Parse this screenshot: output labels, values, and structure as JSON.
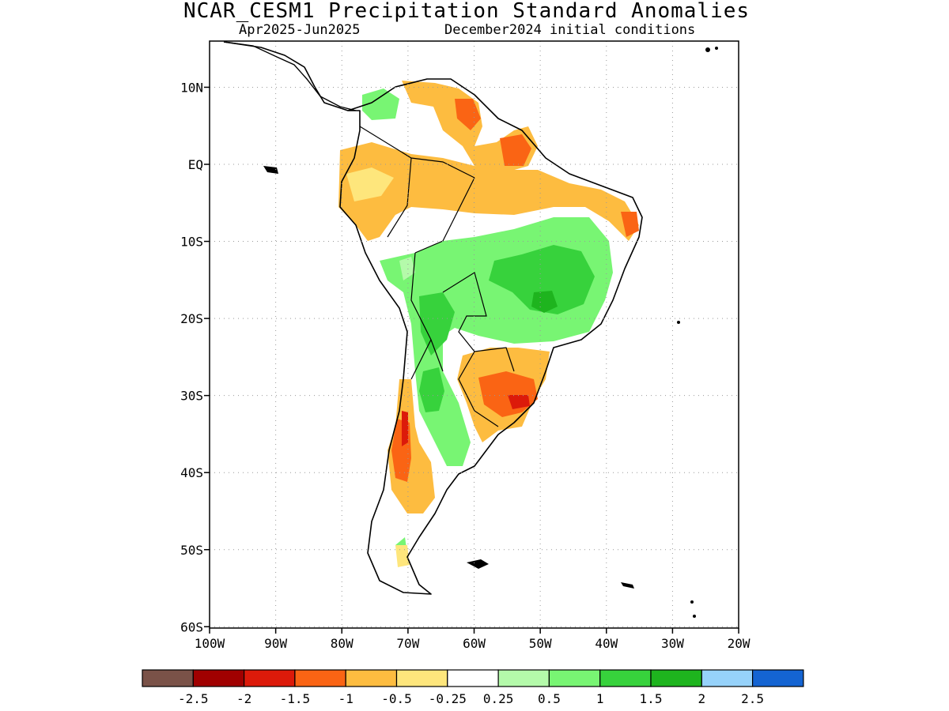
{
  "title": "NCAR_CESM1 Precipitation Standard Anomalies",
  "period": "Apr2025-Jun2025",
  "initial_conditions": "December2024 initial conditions",
  "map": {
    "lon_range": [
      -100,
      -20
    ],
    "lat_range": [
      -60,
      15
    ],
    "lon_ticks": [
      {
        "value": -100,
        "label": "100W"
      },
      {
        "value": -90,
        "label": "90W"
      },
      {
        "value": -80,
        "label": "80W"
      },
      {
        "value": -70,
        "label": "70W"
      },
      {
        "value": -60,
        "label": "60W"
      },
      {
        "value": -50,
        "label": "50W"
      },
      {
        "value": -40,
        "label": "40W"
      },
      {
        "value": -30,
        "label": "30W"
      },
      {
        "value": -20,
        "label": "20W"
      }
    ],
    "lat_ticks": [
      {
        "value": 10,
        "label": "10N"
      },
      {
        "value": 0,
        "label": "EQ"
      },
      {
        "value": -10,
        "label": "10S"
      },
      {
        "value": -20,
        "label": "20S"
      },
      {
        "value": -30,
        "label": "30S"
      },
      {
        "value": -40,
        "label": "40S"
      },
      {
        "value": -50,
        "label": "50S"
      },
      {
        "value": -60,
        "label": "60S"
      }
    ],
    "grid": "dotted"
  },
  "colorbar": {
    "colors": [
      "#7a5248",
      "#a00000",
      "#dc1a0a",
      "#fa6414",
      "#fdbc40",
      "#fee67c",
      "#ffffff",
      "#b4faaa",
      "#78f573",
      "#37d23c",
      "#1eb41e",
      "#96d2fa",
      "#1464d2"
    ],
    "labels": [
      "-2.5",
      "-2",
      "-1.5",
      "-1",
      "-0.5",
      "-0.25",
      "0.25",
      "0.5",
      "1",
      "1.5",
      "2",
      "2.5"
    ]
  }
}
